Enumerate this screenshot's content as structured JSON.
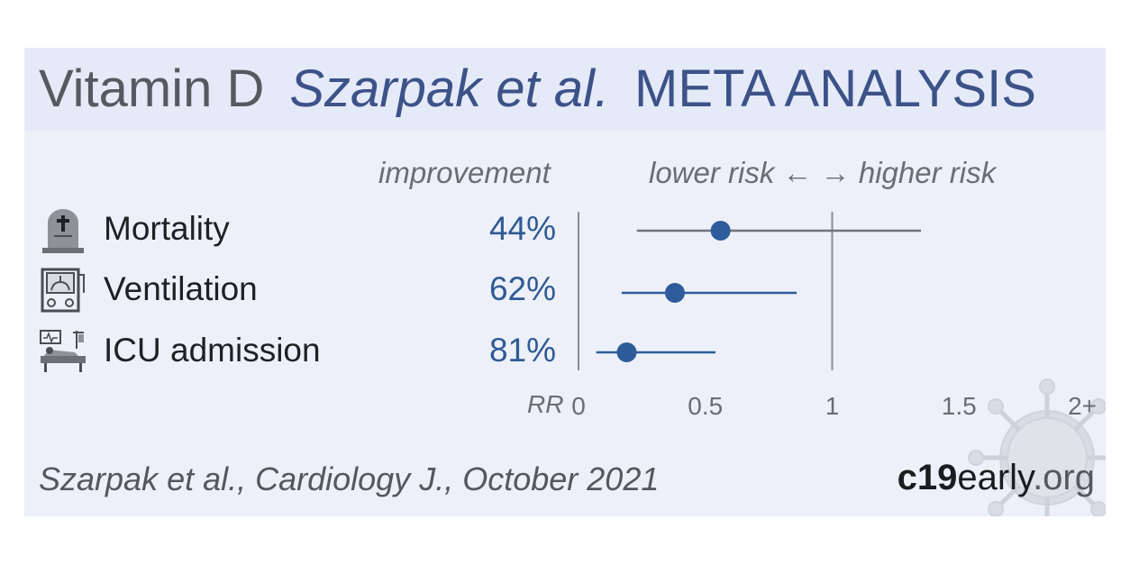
{
  "header": {
    "drug": "Vitamin D",
    "author": "Szarpak et al.",
    "kind": "META ANALYSIS"
  },
  "columns": {
    "improvement": "improvement",
    "risk_direction": "lower risk ← → higher risk",
    "rr": "RR"
  },
  "chart_data": {
    "type": "scatter",
    "subtype": "forest-plot",
    "xlabel": "RR",
    "xlim": [
      0,
      2
    ],
    "xticks": [
      0,
      0.5,
      1,
      1.5,
      2
    ],
    "xtick_labels": [
      "0",
      "0.5",
      "1",
      "1.5",
      "2+"
    ],
    "reference_line": 1,
    "outcomes": [
      {
        "label": "Mortality",
        "icon": "tombstone-icon",
        "improvement": "44%",
        "rr": 0.56,
        "ci": [
          0.23,
          1.35
        ]
      },
      {
        "label": "Ventilation",
        "icon": "ventilator-icon",
        "improvement": "62%",
        "rr": 0.38,
        "ci": [
          0.17,
          0.86
        ]
      },
      {
        "label": "ICU admission",
        "icon": "icu-bed-icon",
        "improvement": "81%",
        "rr": 0.19,
        "ci": [
          0.07,
          0.54
        ]
      }
    ]
  },
  "footer": {
    "citation": "Szarpak et al., Cardiology J., October 2021",
    "brand_bold": "c19",
    "brand_mid": "early",
    "brand_tail": ".org"
  },
  "colors": {
    "accent": "#2e5b9a",
    "title_blue": "#3c5288",
    "ci_line": "#6f7378",
    "ref_line": "#8b8e93",
    "card_bg": "#edf0f8"
  }
}
